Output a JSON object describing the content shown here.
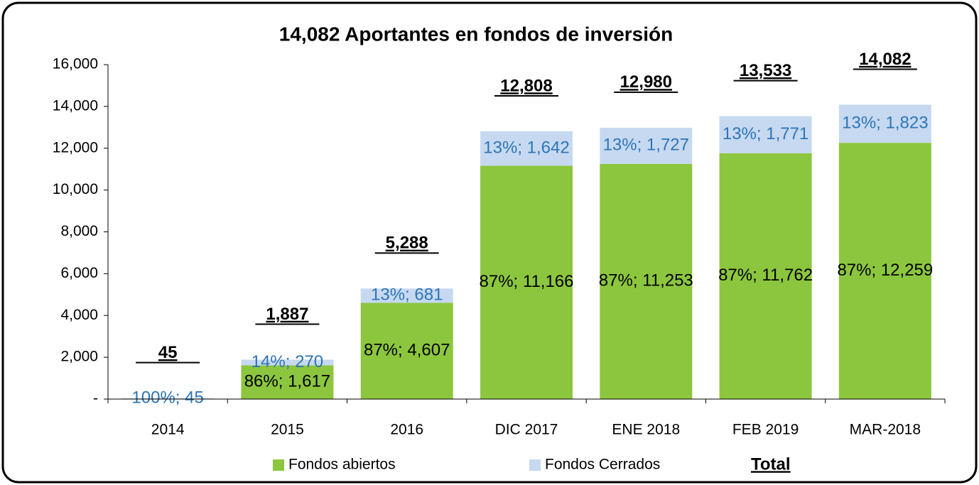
{
  "chart_data": {
    "type": "stacked_bar",
    "title": "14,082 Aportantes en fondos de inversión",
    "categories": [
      "2014",
      "2015",
      "2016",
      "DIC 2017",
      "ENE 2018",
      "FEB 2019",
      "MAR-2018"
    ],
    "series": [
      {
        "name": "Fondos abiertos",
        "color": "#8cc63e",
        "label_color": "#000000",
        "values": [
          0,
          1617,
          4607,
          11166,
          11253,
          11762,
          12259
        ],
        "value_labels": [
          null,
          "86%;  1,617",
          "87%;  4,607",
          "87%;  11,166",
          "87%;  11,253",
          "87%;  11,762",
          "87%;  12,259"
        ]
      },
      {
        "name": "Fondos Cerrados",
        "color": "#c6d9f1",
        "label_color": "#2e75b6",
        "values": [
          45,
          270,
          681,
          1642,
          1727,
          1771,
          1823
        ],
        "value_labels": [
          "100%;  45",
          "14%;  270",
          "13%;  681",
          "13%;  1,642",
          "13%;  1,727",
          "13%;  1,771",
          "13%;  1,823"
        ]
      },
      {
        "name": "Total",
        "label_color": "#000000",
        "values": [
          45,
          1887,
          5288,
          12808,
          12980,
          13533,
          14082
        ],
        "value_labels": [
          "45",
          "1,887",
          "5,288",
          "12,808",
          "12,980",
          "13,533",
          "14,082"
        ]
      }
    ],
    "ylim": [
      0,
      16000
    ],
    "yticks": [
      {
        "value": 0,
        "label": "-"
      },
      {
        "value": 2000,
        "label": "2,000"
      },
      {
        "value": 4000,
        "label": "4,000"
      },
      {
        "value": 6000,
        "label": "6,000"
      },
      {
        "value": 8000,
        "label": "8,000"
      },
      {
        "value": 10000,
        "label": "10,000"
      },
      {
        "value": 12000,
        "label": "12,000"
      },
      {
        "value": 14000,
        "label": "14,000"
      },
      {
        "value": 16000,
        "label": "16,000"
      }
    ],
    "legend": "bottom"
  }
}
